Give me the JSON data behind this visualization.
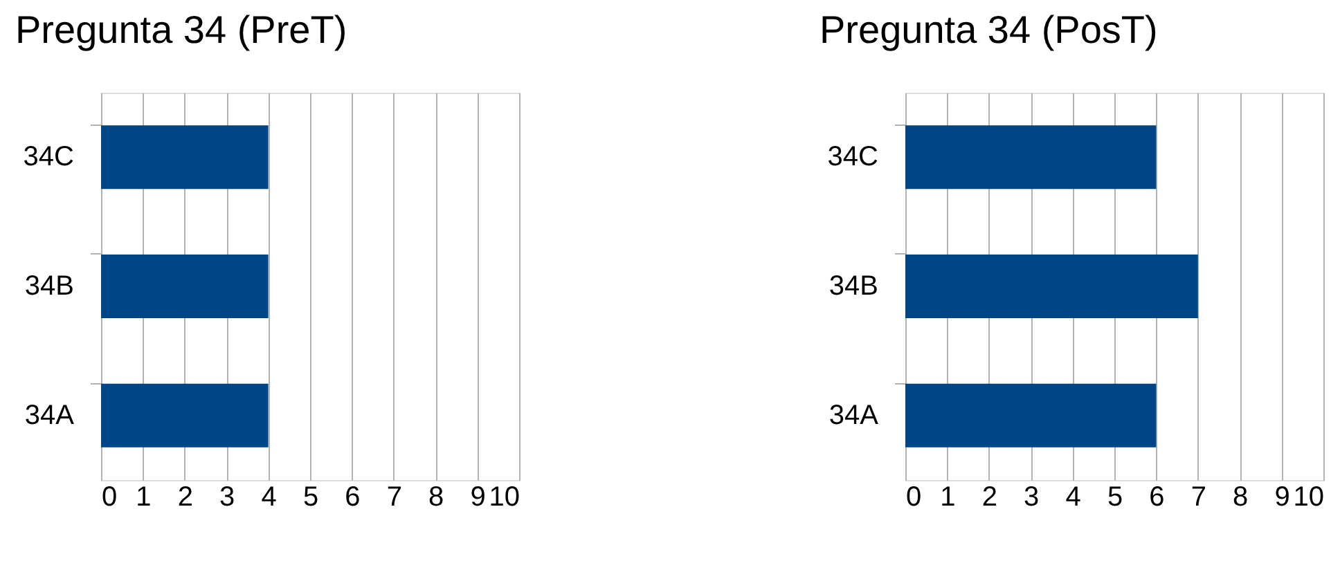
{
  "chart_data": [
    {
      "type": "bar",
      "title": "Pregunta 34 (PreT)",
      "orientation": "horizontal",
      "categories": [
        "34C",
        "34B",
        "34A"
      ],
      "values": [
        4,
        4,
        4
      ],
      "color": "#004586",
      "xlim": [
        0,
        10
      ],
      "xticks": [
        0,
        1,
        2,
        3,
        4,
        5,
        6,
        7,
        8,
        9,
        10
      ],
      "grid": "x"
    },
    {
      "type": "bar",
      "title": "Pregunta 34 (PosT)",
      "orientation": "horizontal",
      "categories": [
        "34C",
        "34B",
        "34A"
      ],
      "values": [
        6,
        7,
        6
      ],
      "color": "#004586",
      "xlim": [
        0,
        10
      ],
      "xticks": [
        0,
        1,
        2,
        3,
        4,
        5,
        6,
        7,
        8,
        9,
        10
      ],
      "grid": "x"
    }
  ]
}
